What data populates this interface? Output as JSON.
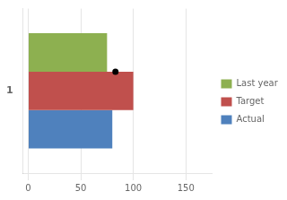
{
  "chart_data": {
    "type": "bar",
    "orientation": "horizontal",
    "categories": [
      "1"
    ],
    "series": [
      {
        "name": "Last year",
        "color": "#8db050",
        "values": [
          75
        ]
      },
      {
        "name": "Target",
        "color": "#c0504d",
        "values": [
          100
        ]
      },
      {
        "name": "Actual",
        "color": "#4f81bd",
        "values": [
          80
        ]
      },
      {
        "type": "scatter",
        "marker": "circle",
        "color": "#000000",
        "values": [
          83
        ]
      }
    ],
    "xlim": [
      -5,
      175
    ],
    "xticks": [
      0,
      50,
      100,
      150
    ],
    "grid": true,
    "legend": "right"
  }
}
